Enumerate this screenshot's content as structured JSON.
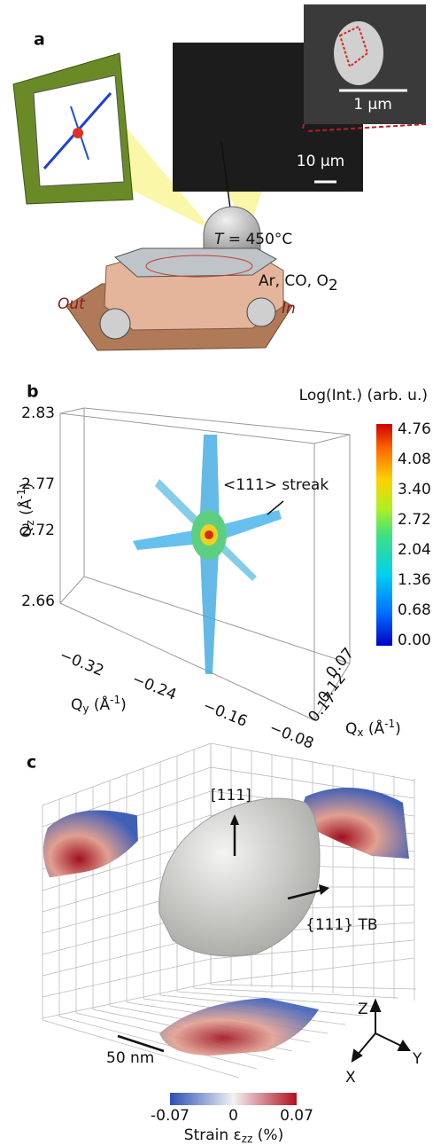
{
  "panel_a": {
    "label": "a",
    "scale_inset": "1 µm",
    "scale_sem": "10 µm",
    "temperature": {
      "symbol": "T",
      "rest": " = 450°C"
    },
    "gases": {
      "base": "Ar, CO, O",
      "sub": "2"
    },
    "outlet": "Out",
    "inlet": "In"
  },
  "panel_b": {
    "label": "b",
    "colorbar_title": "Log(Int.) (arb. u.)",
    "colorbar_ticks": [
      "4.76",
      "4.08",
      "3.40",
      "2.72",
      "2.04",
      "1.36",
      "0.68",
      "0.00"
    ],
    "qz_ticks": [
      "2.83",
      "2.77",
      "2.72",
      "2.66"
    ],
    "qy_ticks": [
      "−0.32",
      "−0.24",
      "−0.16",
      "−0.08"
    ],
    "qx_ticks": [
      "0.07",
      "0.12",
      "0.17"
    ],
    "qz_label": {
      "base": "Q",
      "sub": "z",
      "open": " (Å",
      "sup": "-1",
      "close": ")"
    },
    "qy_label": {
      "base": "Q",
      "sub": "y",
      "open": " (Å",
      "sup": "-1",
      "close": ")"
    },
    "qx_label": {
      "base": "Q",
      "sub": "x",
      "open": " (Å",
      "sup": "-1",
      "close": ")"
    },
    "annotation": "<111> streak"
  },
  "panel_c": {
    "label": "c",
    "direction": "[111]",
    "boundary": "{111} TB",
    "scale": "50 nm",
    "axes": {
      "z": "Z",
      "y": "Y",
      "x": "X"
    },
    "colorbar_ticks": [
      "-0.07",
      "0",
      "0.07"
    ],
    "colorbar_title": {
      "base": "Strain ε",
      "sub": "zz",
      "rest": " (%)"
    }
  }
}
